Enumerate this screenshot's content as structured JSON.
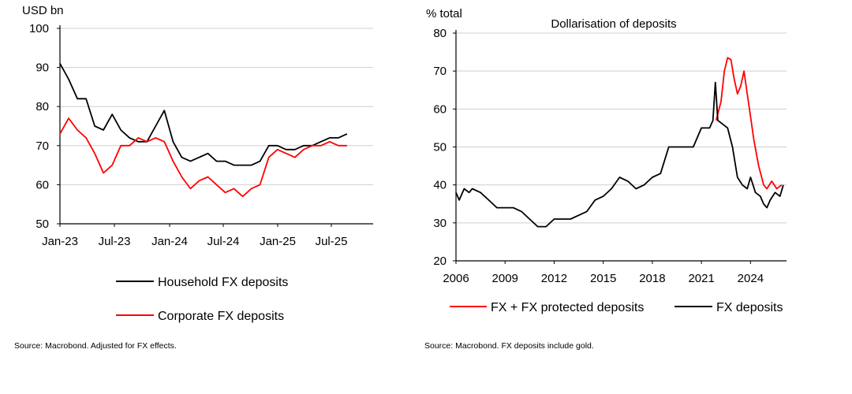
{
  "chart_data": [
    {
      "type": "line",
      "title": "",
      "ylabel": "USD bn",
      "ylim": [
        50,
        100
      ],
      "yticks": [
        "50",
        "60",
        "70",
        "80",
        "90",
        "100"
      ],
      "xlim": [
        0,
        36
      ],
      "xtick_labels": [
        "Jan-23",
        "Jul-23",
        "Jan-24",
        "Jul-24",
        "Jan-25",
        "Jul-25"
      ],
      "grid": true,
      "legend_position": "bottom",
      "source": "Source: Macrobond. Adjusted for FX effects.",
      "series": [
        {
          "name": "Household FX deposits",
          "color": "#000000",
          "points": [
            [
              0,
              91
            ],
            [
              1,
              87
            ],
            [
              2,
              82
            ],
            [
              3,
              82
            ],
            [
              4,
              75
            ],
            [
              5,
              74
            ],
            [
              6,
              78
            ],
            [
              7,
              74
            ],
            [
              8,
              72
            ],
            [
              9,
              71
            ],
            [
              10,
              71
            ],
            [
              11,
              75
            ],
            [
              12,
              79
            ],
            [
              13,
              71
            ],
            [
              14,
              67
            ],
            [
              15,
              66
            ],
            [
              16,
              67
            ],
            [
              17,
              68
            ],
            [
              18,
              66
            ],
            [
              19,
              66
            ],
            [
              20,
              65
            ],
            [
              21,
              65
            ],
            [
              22,
              65
            ],
            [
              23,
              66
            ],
            [
              24,
              70
            ],
            [
              25,
              70
            ],
            [
              26,
              69
            ],
            [
              27,
              69
            ],
            [
              28,
              70
            ],
            [
              29,
              70
            ],
            [
              30,
              71
            ],
            [
              31,
              72
            ],
            [
              32,
              72
            ],
            [
              33,
              73
            ]
          ]
        },
        {
          "name": "Corporate FX deposits",
          "color": "#ff0000",
          "points": [
            [
              0,
              73
            ],
            [
              1,
              77
            ],
            [
              2,
              74
            ],
            [
              3,
              72
            ],
            [
              4,
              68
            ],
            [
              5,
              63
            ],
            [
              6,
              65
            ],
            [
              7,
              70
            ],
            [
              8,
              70
            ],
            [
              9,
              72
            ],
            [
              10,
              71
            ],
            [
              11,
              72
            ],
            [
              12,
              71
            ],
            [
              13,
              66
            ],
            [
              14,
              62
            ],
            [
              15,
              59
            ],
            [
              16,
              61
            ],
            [
              17,
              62
            ],
            [
              18,
              60
            ],
            [
              19,
              58
            ],
            [
              20,
              59
            ],
            [
              21,
              57
            ],
            [
              22,
              59
            ],
            [
              23,
              60
            ],
            [
              24,
              67
            ],
            [
              25,
              69
            ],
            [
              26,
              68
            ],
            [
              27,
              67
            ],
            [
              28,
              69
            ],
            [
              29,
              70
            ],
            [
              30,
              70
            ],
            [
              31,
              71
            ],
            [
              32,
              70
            ],
            [
              33,
              70
            ]
          ]
        }
      ]
    },
    {
      "type": "line",
      "title": "Dollarisation of deposits",
      "ylabel": "% total",
      "ylim": [
        20,
        80
      ],
      "yticks": [
        "20",
        "30",
        "40",
        "50",
        "60",
        "70",
        "80"
      ],
      "xlim": [
        2006,
        2026.2
      ],
      "xticks": [
        2006,
        2009,
        2012,
        2015,
        2018,
        2021,
        2024
      ],
      "xtick_labels": [
        "2006",
        "2009",
        "2012",
        "2015",
        "2018",
        "2021",
        "2024"
      ],
      "grid": true,
      "legend_position": "bottom",
      "source": "Source: Macrobond. FX deposits include gold.",
      "series": [
        {
          "name": "FX + FX protected deposits",
          "color": "#ff0000",
          "points": [
            [
              2021.9,
              57
            ],
            [
              2022.2,
              62
            ],
            [
              2022.4,
              70
            ],
            [
              2022.6,
              73.5
            ],
            [
              2022.8,
              73
            ],
            [
              2023.0,
              68
            ],
            [
              2023.2,
              64
            ],
            [
              2023.4,
              66
            ],
            [
              2023.6,
              70
            ],
            [
              2023.8,
              64
            ],
            [
              2024.0,
              58
            ],
            [
              2024.2,
              52
            ],
            [
              2024.5,
              45
            ],
            [
              2024.8,
              40
            ],
            [
              2025.0,
              39
            ],
            [
              2025.3,
              41
            ],
            [
              2025.6,
              39
            ],
            [
              2025.9,
              40
            ]
          ]
        },
        {
          "name": "FX deposits",
          "color": "#000000",
          "points": [
            [
              2006.0,
              38
            ],
            [
              2006.2,
              36
            ],
            [
              2006.5,
              39
            ],
            [
              2006.8,
              38
            ],
            [
              2007.0,
              39
            ],
            [
              2007.5,
              38
            ],
            [
              2008.0,
              36
            ],
            [
              2008.5,
              34
            ],
            [
              2009.0,
              34
            ],
            [
              2009.5,
              34
            ],
            [
              2010.0,
              33
            ],
            [
              2010.5,
              31
            ],
            [
              2011.0,
              29
            ],
            [
              2011.5,
              29
            ],
            [
              2012.0,
              31
            ],
            [
              2012.5,
              31
            ],
            [
              2013.0,
              31
            ],
            [
              2013.5,
              32
            ],
            [
              2014.0,
              33
            ],
            [
              2014.5,
              36
            ],
            [
              2015.0,
              37
            ],
            [
              2015.5,
              39
            ],
            [
              2016.0,
              42
            ],
            [
              2016.5,
              41
            ],
            [
              2017.0,
              39
            ],
            [
              2017.5,
              40
            ],
            [
              2018.0,
              42
            ],
            [
              2018.5,
              43
            ],
            [
              2019.0,
              50
            ],
            [
              2019.5,
              50
            ],
            [
              2020.0,
              50
            ],
            [
              2020.5,
              50
            ],
            [
              2021.0,
              55
            ],
            [
              2021.5,
              55
            ],
            [
              2021.7,
              57
            ],
            [
              2021.85,
              67
            ],
            [
              2022.0,
              57
            ],
            [
              2022.3,
              56
            ],
            [
              2022.6,
              55
            ],
            [
              2022.9,
              50
            ],
            [
              2023.2,
              42
            ],
            [
              2023.5,
              40
            ],
            [
              2023.8,
              39
            ],
            [
              2024.0,
              42
            ],
            [
              2024.3,
              38
            ],
            [
              2024.6,
              37
            ],
            [
              2024.8,
              35
            ],
            [
              2025.0,
              34
            ],
            [
              2025.2,
              36
            ],
            [
              2025.5,
              38
            ],
            [
              2025.8,
              37
            ],
            [
              2026.0,
              40
            ]
          ]
        }
      ]
    }
  ]
}
